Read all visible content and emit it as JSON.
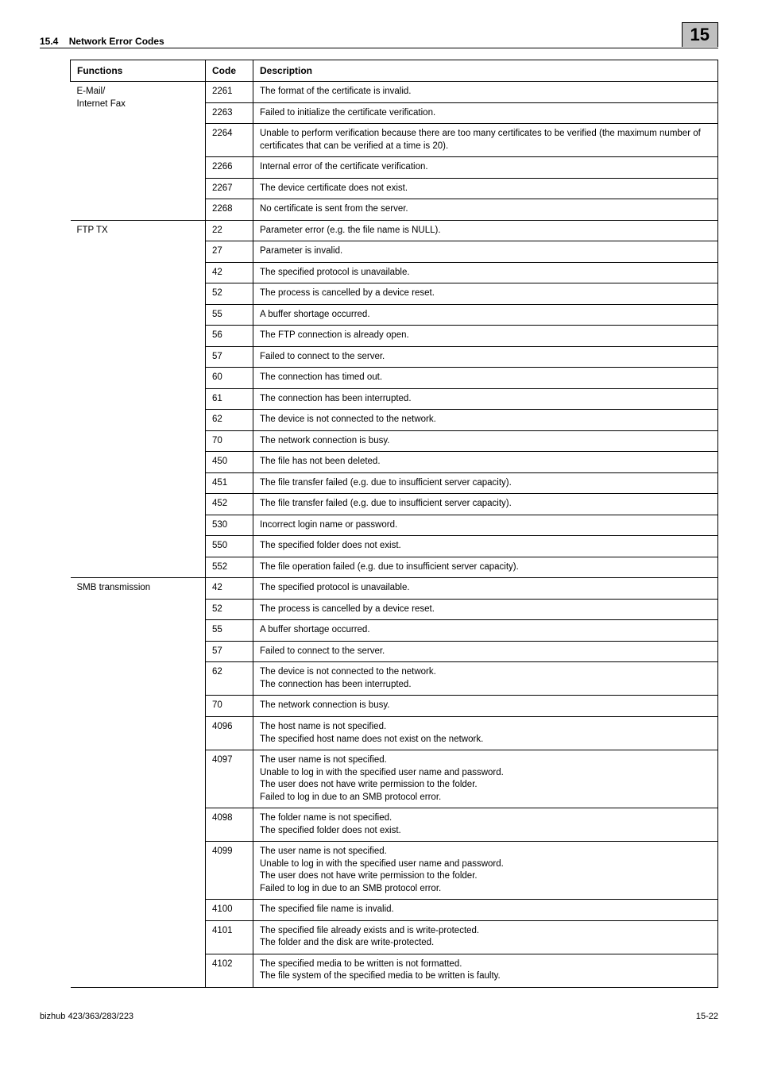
{
  "header": {
    "section": "15.4",
    "title": "Network Error Codes",
    "badge": "15"
  },
  "footer": {
    "left": "bizhub 423/363/283/223",
    "right": "15-22"
  },
  "columns": {
    "functions": "Functions",
    "code": "Code",
    "description": "Description"
  },
  "groups": [
    {
      "fn": "E-Mail/\nInternet Fax",
      "rows": [
        {
          "code": "2261",
          "desc": "The format of the certificate is invalid."
        },
        {
          "code": "2263",
          "desc": "Failed to initialize the certificate verification."
        },
        {
          "code": "2264",
          "desc": "Unable to perform verification because there are too many certificates to be verified (the maximum number of certificates that can be verified at a time is 20)."
        },
        {
          "code": "2266",
          "desc": "Internal error of the certificate verification."
        },
        {
          "code": "2267",
          "desc": "The device certificate does not exist."
        },
        {
          "code": "2268",
          "desc": "No certificate is sent from the server."
        }
      ]
    },
    {
      "fn": "FTP TX",
      "rows": [
        {
          "code": "22",
          "desc": "Parameter error (e.g. the file name is NULL)."
        },
        {
          "code": "27",
          "desc": "Parameter is invalid."
        },
        {
          "code": "42",
          "desc": "The specified protocol is unavailable."
        },
        {
          "code": "52",
          "desc": "The process is cancelled by a device reset."
        },
        {
          "code": "55",
          "desc": "A buffer shortage occurred."
        },
        {
          "code": "56",
          "desc": "The FTP connection is already open."
        },
        {
          "code": "57",
          "desc": "Failed to connect to the server."
        },
        {
          "code": "60",
          "desc": "The connection has timed out."
        },
        {
          "code": "61",
          "desc": "The connection has been interrupted."
        },
        {
          "code": "62",
          "desc": "The device is not connected to the network."
        },
        {
          "code": "70",
          "desc": "The network connection is busy."
        },
        {
          "code": "450",
          "desc": "The file has not been deleted."
        },
        {
          "code": "451",
          "desc": "The file transfer failed (e.g. due to insufficient server capacity)."
        },
        {
          "code": "452",
          "desc": "The file transfer failed (e.g. due to insufficient server capacity)."
        },
        {
          "code": "530",
          "desc": "Incorrect login name or password."
        },
        {
          "code": "550",
          "desc": "The specified folder does not exist."
        },
        {
          "code": "552",
          "desc": "The file operation failed (e.g. due to insufficient server capacity)."
        }
      ]
    },
    {
      "fn": "SMB transmission",
      "rows": [
        {
          "code": "42",
          "desc": "The specified protocol is unavailable."
        },
        {
          "code": "52",
          "desc": "The process is cancelled by a device reset."
        },
        {
          "code": "55",
          "desc": "A buffer shortage occurred."
        },
        {
          "code": "57",
          "desc": "Failed to connect to the server."
        },
        {
          "code": "62",
          "desc": "The device is not connected to the network.\nThe connection has been interrupted."
        },
        {
          "code": "70",
          "desc": "The network connection is busy."
        },
        {
          "code": "4096",
          "desc": "The host name is not specified.\nThe specified host name does not exist on the network."
        },
        {
          "code": "4097",
          "desc": "The user name is not specified.\nUnable to log in with the specified user name and password.\nThe user does not have write permission to the folder.\nFailed to log in due to an SMB protocol error."
        },
        {
          "code": "4098",
          "desc": "The folder name is not specified.\nThe specified folder does not exist."
        },
        {
          "code": "4099",
          "desc": "The user name is not specified.\nUnable to log in with the specified user name and password.\nThe user does not have write permission to the folder.\nFailed to log in due to an SMB protocol error."
        },
        {
          "code": "4100",
          "desc": "The specified file name is invalid."
        },
        {
          "code": "4101",
          "desc": "The specified file already exists and is write-protected.\nThe folder and the disk are write-protected."
        },
        {
          "code": "4102",
          "desc": "The specified media to be written is not formatted.\nThe file system of the specified media to be written is faulty."
        }
      ]
    }
  ]
}
